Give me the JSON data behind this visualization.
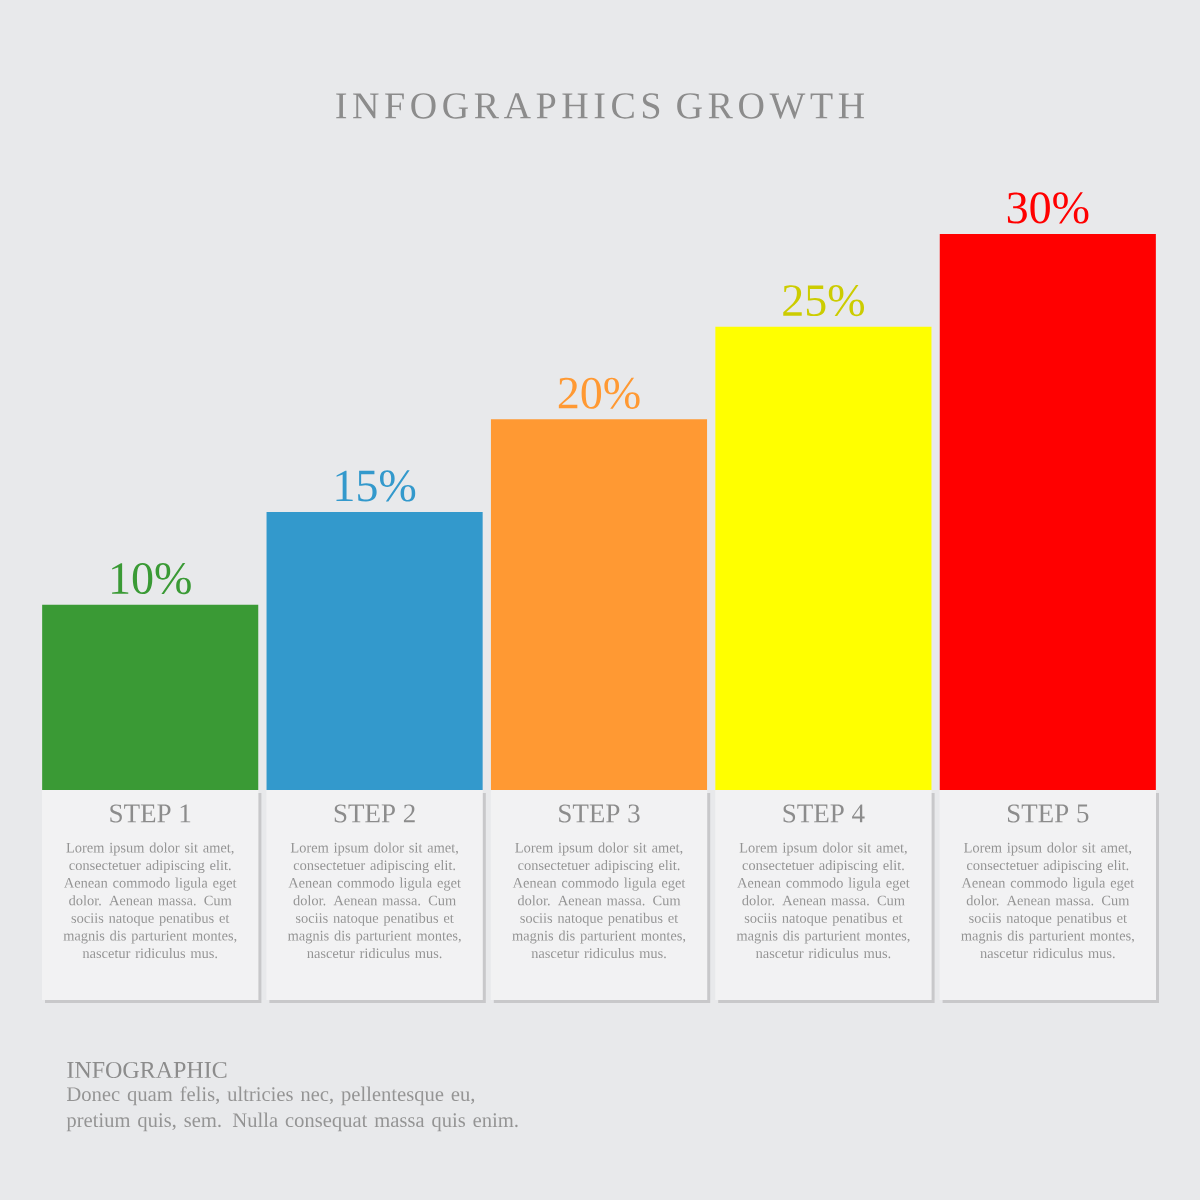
{
  "chart_data": {
    "type": "bar",
    "title": "INFOGRAPHICS GROWTH",
    "categories": [
      "STEP 1",
      "STEP 2",
      "STEP 3",
      "STEP 4",
      "STEP 5"
    ],
    "values": [
      10,
      15,
      20,
      25,
      30
    ],
    "colors": [
      "#3a9a35",
      "#3399cc",
      "#ff9933",
      "#ffff00",
      "#ff0000"
    ],
    "value_labels": [
      "10%",
      "15%",
      "20%",
      "25%",
      "30%"
    ],
    "annotations": [
      "Lorem ipsum dolor sit amet, consectetuer adipiscing elit. Aenean commodo ligula eget dolor. Aenean massa. Cum sociis natoque penatibus et magnis dis parturient montes, nascetur ridiculus mus.",
      "Lorem ipsum dolor sit amet, consectetuer adipiscing elit. Aenean commodo ligula eget dolor. Aenean massa. Cum sociis natoque penatibus et magnis dis parturient montes, nascetur ridiculus mus.",
      "Lorem ipsum dolor sit amet, consectetuer adipiscing elit. Aenean commodo ligula eget dolor. Aenean massa. Cum sociis natoque penatibus et magnis dis parturient montes, nascetur ridiculus mus.",
      "Lorem ipsum dolor sit amet, consectetuer adipiscing elit. Aenean commodo ligula eget dolor. Aenean massa. Cum sociis natoque penatibus et magnis dis parturient montes, nascetur ridiculus mus.",
      "Lorem ipsum dolor sit amet, consectetuer adipiscing elit. Aenean commodo ligula eget dolor. Aenean massa. Cum sociis natoque penatibus et magnis dis parturient montes, nascetur ridiculus mus.",
      "INFOGRAPHIC",
      "Donec quam felis, ultricies nec, pellentesque eu, pretium quis, sem. Nulla consequat massa quis enim."
    ]
  }
}
